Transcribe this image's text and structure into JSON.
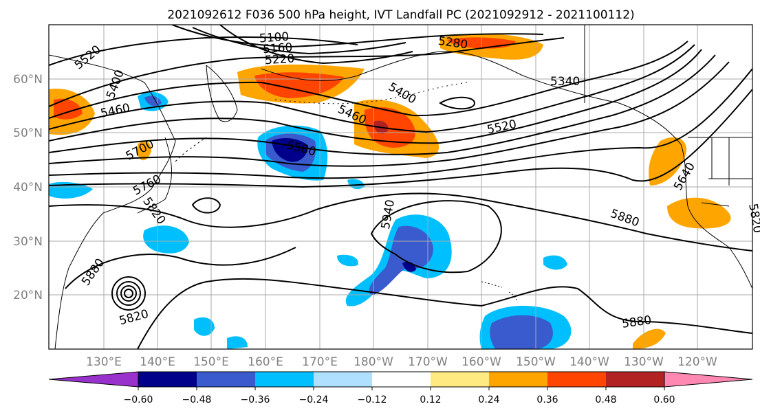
{
  "title": "2021092612 F036 500 hPa height, IVT Landfall PC (2021092912 - 2021100112)",
  "map": {
    "lon_labels": [
      "130°E",
      "140°E",
      "150°E",
      "160°E",
      "170°E",
      "180°W",
      "170°W",
      "160°W",
      "150°W",
      "140°W",
      "130°W",
      "120°W"
    ],
    "lat_labels": [
      "60°N",
      "50°N",
      "40°N",
      "30°N",
      "20°N"
    ],
    "contour_labels": [
      "5520",
      "5400",
      "5460",
      "5100",
      "5160",
      "5220",
      "5280",
      "5340",
      "5400",
      "5460",
      "5520",
      "5580",
      "5700",
      "5760",
      "5820",
      "5880",
      "5940",
      "5820",
      "5880",
      "5640",
      "5820",
      "5880"
    ]
  },
  "colorbar": {
    "ticks": [
      "−0.60",
      "−0.48",
      "−0.36",
      "−0.24",
      "−0.12",
      "0.12",
      "0.24",
      "0.36",
      "0.48",
      "0.60"
    ],
    "colors": [
      "#9932cc",
      "#00008b",
      "#3a5bcd",
      "#00bfff",
      "#b0e0ff",
      "#ffffff",
      "#ffe980",
      "#ffa500",
      "#ff4500",
      "#b22222",
      "#ff88b3"
    ]
  }
}
